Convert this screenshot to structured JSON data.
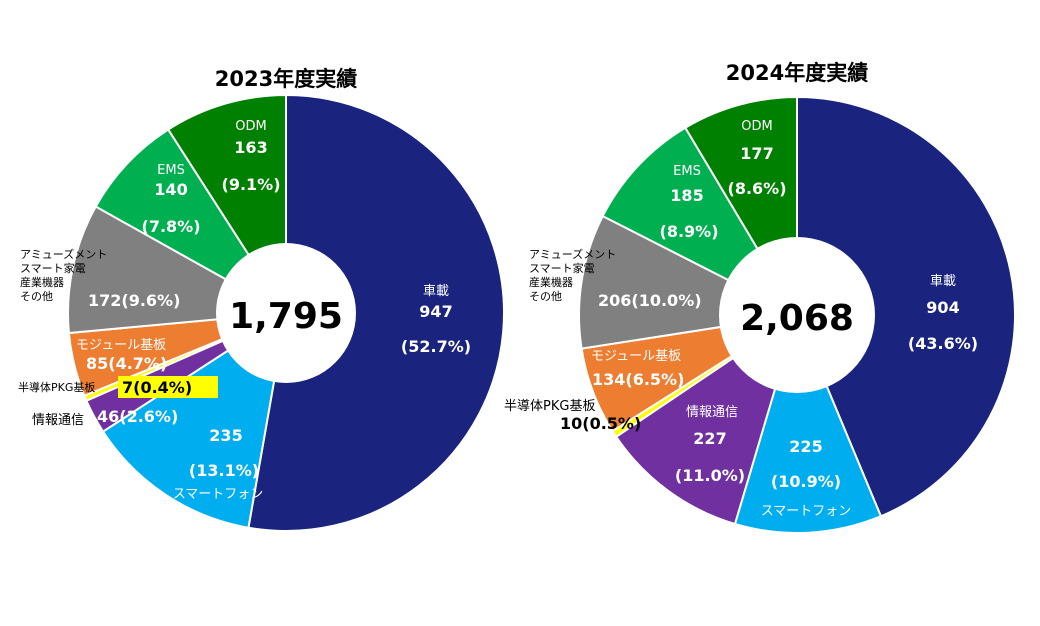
{
  "chart_data": [
    {
      "type": "pie",
      "title": "2023年度実績",
      "center_total": "1,795",
      "slices": [
        {
          "name": "車載",
          "value": 947,
          "share": "52.7%",
          "color": "#1a237e"
        },
        {
          "name": "スマートフォン",
          "value": 235,
          "share": "13.1%",
          "color": "#00aeef"
        },
        {
          "name": "情報通信",
          "value": 46,
          "share": "2.6%",
          "color": "#7030a0"
        },
        {
          "name": "半導体PKG基板",
          "value": 7,
          "share": "0.4%",
          "color": "#ffff00"
        },
        {
          "name": "モジュール基板",
          "value": 85,
          "share": "4.7%",
          "color": "#ed7d31"
        },
        {
          "name": "アミューズメント スマート家電 産業機器 その他",
          "value": 172,
          "share": "9.6%",
          "color": "#808080"
        },
        {
          "name": "EMS",
          "value": 140,
          "share": "7.8%",
          "color": "#00b050"
        },
        {
          "name": "ODM",
          "value": 163,
          "share": "9.1%",
          "color": "#008000"
        }
      ]
    },
    {
      "type": "pie",
      "title": "2024年度実績",
      "center_total": "2,068",
      "slices": [
        {
          "name": "車載",
          "value": 904,
          "share": "43.6%",
          "color": "#1a237e"
        },
        {
          "name": "スマートフォン",
          "value": 225,
          "share": "10.9%",
          "color": "#00aeef"
        },
        {
          "name": "情報通信",
          "value": 227,
          "share": "11.0%",
          "color": "#7030a0"
        },
        {
          "name": "半導体PKG基板",
          "value": 10,
          "share": "0.5%",
          "color": "#ffff00"
        },
        {
          "name": "モジュール基板",
          "value": 134,
          "share": "6.5%",
          "color": "#ed7d31"
        },
        {
          "name": "アミューズメント スマート家電 産業機器 その他",
          "value": 206,
          "share": "10.0%",
          "color": "#808080"
        },
        {
          "name": "EMS",
          "value": 185,
          "share": "8.9%",
          "color": "#00b050"
        },
        {
          "name": "ODM",
          "value": 177,
          "share": "8.6%",
          "color": "#008000"
        }
      ]
    }
  ],
  "labels_2023": {
    "car_name": "車載",
    "car_value": "947",
    "car_pct": "(52.7%)",
    "phone_value": "235",
    "phone_pct": "(13.1%)",
    "phone_name": "スマートフォン",
    "info_name": "情報通信",
    "info_value": "46(2.6%)",
    "pkg_name": "半導体PKG基板",
    "pkg_value": "7(0.4%)",
    "mod_name": "モジュール基板",
    "mod_value": "85(4.7%)",
    "other_line1": "アミューズメント",
    "other_line2": "スマート家電",
    "other_line3": "産業機器",
    "other_line4": "その他",
    "other_value": "172(9.6%)",
    "ems_name": "EMS",
    "ems_value": "140",
    "ems_pct": "(7.8%)",
    "odm_name": "ODM",
    "odm_value": "163",
    "odm_pct": "(9.1%)"
  },
  "labels_2024": {
    "car_name": "車載",
    "car_value": "904",
    "car_pct": "(43.6%)",
    "phone_value": "225",
    "phone_pct": "(10.9%)",
    "phone_name": "スマートフォン",
    "info_name": "情報通信",
    "info_value": "227",
    "info_pct": "(11.0%)",
    "pkg_name": "半導体PKG基板",
    "pkg_value": "10(0.5%)",
    "mod_name": "モジュール基板",
    "mod_value": "134(6.5%)",
    "other_line1": "アミューズメント",
    "other_line2": "スマート家電",
    "other_line3": "産業機器",
    "other_line4": "その他",
    "other_value": "206(10.0%)",
    "ems_name": "EMS",
    "ems_value": "185",
    "ems_pct": "(8.9%)",
    "odm_name": "ODM",
    "odm_value": "177",
    "odm_pct": "(8.6%)"
  }
}
